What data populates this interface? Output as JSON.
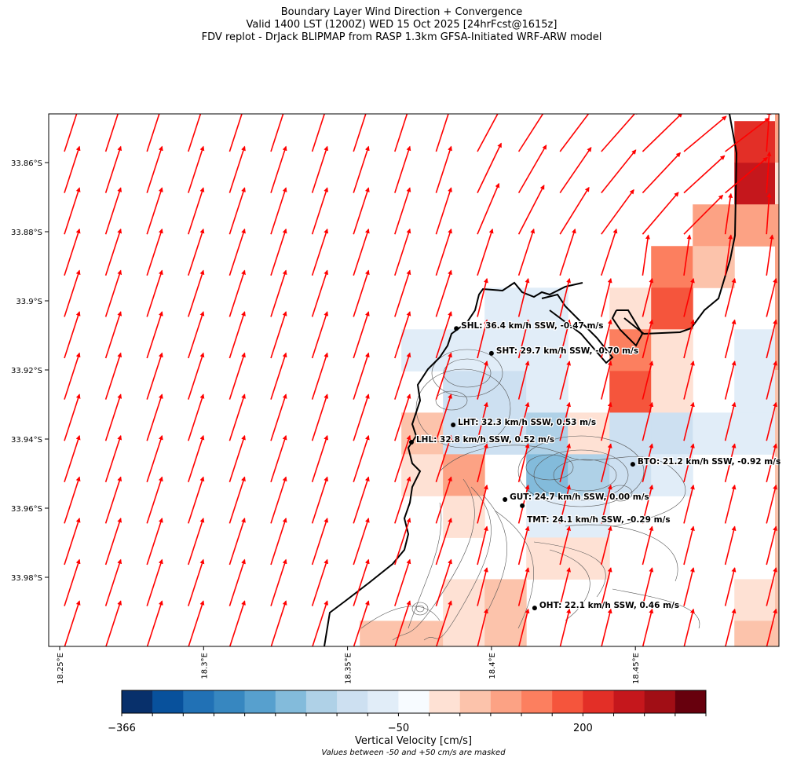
{
  "title": {
    "line1": "Boundary Layer Wind Direction + Convergence",
    "line2": "Valid 1400 LST (1200Z) WED 15 Oct 2025 [24hrFcst@1615z]",
    "line3": "FDV replot - DrJack BLIPMAP from RASP 1.3km GFSA-Initiated WRF-ARW model"
  },
  "chart_data": {
    "type": "heatmap",
    "subtype": "map with wind vectors",
    "lon_range": [
      18.246,
      18.5
    ],
    "lat_range": [
      33.846,
      34.0
    ],
    "lat_ticks": [
      "33.86°S",
      "33.88°S",
      "33.9°S",
      "33.92°S",
      "33.94°S",
      "33.96°S",
      "33.98°S"
    ],
    "lat_tick_values": [
      33.86,
      33.88,
      33.9,
      33.92,
      33.94,
      33.96,
      33.98
    ],
    "lon_ticks": [
      "18.25°E",
      "18.3°E",
      "18.35°E",
      "18.4°E",
      "18.45°E"
    ],
    "lon_tick_values": [
      18.25,
      18.3,
      18.35,
      18.4,
      18.45
    ],
    "grid": {
      "lon0": 18.3687,
      "lat0": 33.848,
      "dlon": 0.01446,
      "dlat": 0.01205
    },
    "cells_note": "col,row,color_bin",
    "cells": [
      [
        8,
        0,
        15
      ],
      [
        8,
        1,
        16
      ],
      [
        7,
        2,
        12
      ],
      [
        8,
        2,
        12
      ],
      [
        6,
        3,
        13
      ],
      [
        7,
        3,
        11
      ],
      [
        5,
        4,
        10
      ],
      [
        6,
        4,
        14
      ],
      [
        2,
        4,
        8
      ],
      [
        3,
        4,
        8
      ],
      [
        0,
        5,
        8
      ],
      [
        1,
        5,
        8
      ],
      [
        2,
        5,
        8
      ],
      [
        3,
        5,
        8
      ],
      [
        5,
        5,
        13
      ],
      [
        6,
        5,
        10
      ],
      [
        8,
        5,
        8
      ],
      [
        1,
        6,
        7
      ],
      [
        2,
        6,
        7
      ],
      [
        3,
        6,
        8
      ],
      [
        5,
        6,
        14
      ],
      [
        6,
        6,
        10
      ],
      [
        8,
        6,
        8
      ],
      [
        0,
        7,
        11
      ],
      [
        1,
        7,
        7
      ],
      [
        2,
        7,
        7
      ],
      [
        3,
        7,
        6
      ],
      [
        4,
        7,
        10
      ],
      [
        5,
        7,
        7
      ],
      [
        6,
        7,
        7
      ],
      [
        7,
        7,
        8
      ],
      [
        8,
        7,
        8
      ],
      [
        0,
        8,
        10
      ],
      [
        1,
        8,
        12
      ],
      [
        3,
        8,
        5
      ],
      [
        4,
        8,
        6
      ],
      [
        5,
        8,
        7
      ],
      [
        6,
        8,
        8
      ],
      [
        1,
        9,
        10
      ],
      [
        3,
        9,
        8
      ],
      [
        4,
        9,
        8
      ],
      [
        3,
        10,
        10
      ],
      [
        4,
        10,
        10
      ],
      [
        1,
        11,
        10
      ],
      [
        2,
        11,
        11
      ],
      [
        8,
        11,
        10
      ],
      [
        -1,
        12,
        11
      ],
      [
        0,
        12,
        11
      ],
      [
        1,
        12,
        10
      ],
      [
        2,
        12,
        11
      ],
      [
        8,
        12,
        11
      ]
    ],
    "colorbar": {
      "label": "Vertical Velocity [cm/s]",
      "note": "Values between -50 and +50 cm/s are masked",
      "tick_labels": [
        "−366",
        "−50",
        "200"
      ],
      "tick_values": [
        -366,
        -50,
        200
      ],
      "colors": [
        "#08306b",
        "#08519c",
        "#2171b5",
        "#3787c0",
        "#57a0ce",
        "#83bbdb",
        "#afd1e7",
        "#cde0f1",
        "#e1edf8",
        "#f7fbff",
        "#fee1d4",
        "#fcc3ab",
        "#fca284",
        "#fc7f5f",
        "#f5553c",
        "#e32f27",
        "#c5171c",
        "#a10e15",
        "#67000d"
      ]
    },
    "stations": [
      {
        "label": "SHL: 36.4 km/h SSW, -0.47 m/s",
        "lon": 18.3878,
        "lat": 33.908
      },
      {
        "label": "SHT: 29.7 km/h SSW, -0.70 m/s",
        "lon": 18.4,
        "lat": 33.9152
      },
      {
        "label": "LHT: 32.3 km/h SSW, 0.53 m/s",
        "lon": 18.3867,
        "lat": 33.9359
      },
      {
        "label": "LHL: 32.8 km/h SSW, 0.52 m/s",
        "lon": 18.3722,
        "lat": 33.9409
      },
      {
        "label": "BTO: 21.2 km/h SSW, -0.92 m/s",
        "lon": 18.4491,
        "lat": 33.9473
      },
      {
        "label": "GUT: 24.7 km/h SSW, 0.00 m/s",
        "lon": 18.4047,
        "lat": 33.9575
      },
      {
        "label": "TMT: 24.1 km/h SSW, -0.29 m/s",
        "lon": 18.4107,
        "lat": 33.9593,
        "label_below": true
      },
      {
        "label": "OHT: 22.1 km/h SSW, 0.46 m/s",
        "lon": 18.415,
        "lat": 33.9889
      }
    ],
    "wind_color": "#ff0000"
  }
}
